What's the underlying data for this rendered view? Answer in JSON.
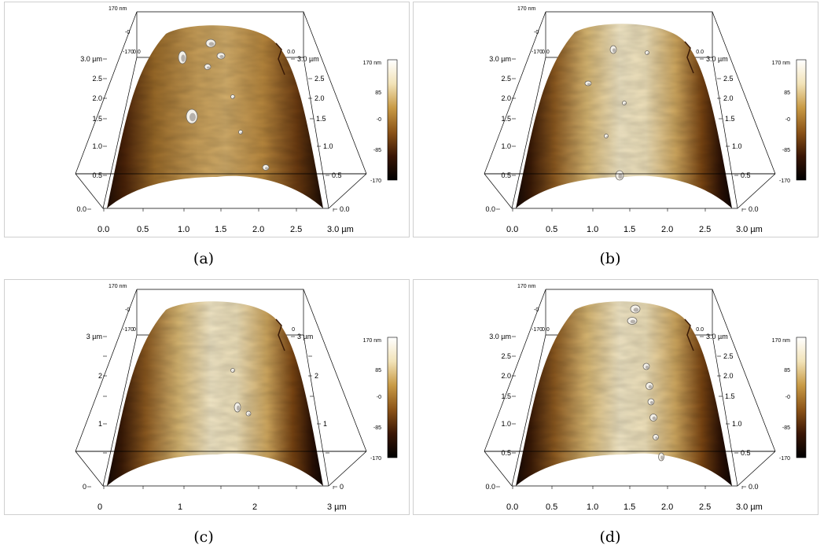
{
  "panels": [
    {
      "caption": "(a)",
      "z_top_label": "170 nm",
      "z_zero_label": "-0",
      "z_min_label": "-170",
      "left_corner_label": "0.0",
      "right_corner_label": "0.0",
      "y_axis_left": [
        "3.0 µm",
        "2.5",
        "2.0",
        "1.5",
        "1.0",
        "0.5",
        "0.0"
      ],
      "y_axis_right": [
        "3.0 µm",
        "2.5",
        "2.0",
        "1.5",
        "1.0",
        "0.5",
        "0.0"
      ],
      "y_corner_left": "0.0",
      "x_axis": [
        "0.0",
        "0.5",
        "1.0",
        "1.5",
        "2.0",
        "2.5",
        "3.0 µm"
      ],
      "colorbar": [
        "170 nm",
        "85",
        "-0",
        "-85",
        "-170"
      ]
    },
    {
      "caption": "(b)",
      "z_top_label": "170 nm",
      "z_zero_label": "-0",
      "z_min_label": "-170",
      "left_corner_label": "0.0",
      "right_corner_label": "0.0",
      "y_axis_left": [
        "3.0 µm",
        "2.5",
        "2.0",
        "1.5",
        "1.0",
        "0.5",
        "0.0"
      ],
      "y_axis_right": [
        "3.0 µm",
        "2.5",
        "2.0",
        "1.5",
        "1.0",
        "0.5",
        "0.0"
      ],
      "y_corner_left": "0.0",
      "x_axis": [
        "0.0",
        "0.5",
        "1.0",
        "1.5",
        "2.0",
        "2.5",
        "3.0 µm"
      ],
      "colorbar": [
        "170 nm",
        "85",
        "-0",
        "-85",
        "-170"
      ]
    },
    {
      "caption": "(c)",
      "z_top_label": "170 nm",
      "z_zero_label": "-0",
      "z_min_label": "-170",
      "left_corner_label": "0",
      "right_corner_label": "0",
      "y_axis_left": [
        "3 µm",
        "",
        "2",
        "",
        "1",
        "",
        "0"
      ],
      "y_axis_right": [
        "3 µm",
        "",
        "2",
        "",
        "1",
        "",
        "0"
      ],
      "y_corner_left": "0",
      "x_axis": [
        "0",
        "",
        "1",
        "",
        "2",
        "",
        "3 µm"
      ],
      "colorbar": [
        "170 nm",
        "85",
        "-0",
        "-85",
        "-170"
      ]
    },
    {
      "caption": "(d)",
      "z_top_label": "170 nm",
      "z_zero_label": "-0",
      "z_min_label": "-170",
      "left_corner_label": "0.0",
      "right_corner_label": "0.0",
      "y_axis_left": [
        "3.0 µm",
        "2.5",
        "2.0",
        "1.5",
        "1.0",
        "0.5",
        "0.0"
      ],
      "y_axis_right": [
        "3.0 µm",
        "2.5",
        "2.0",
        "1.5",
        "1.0",
        "0.5",
        "0.0"
      ],
      "y_corner_left": "0.0",
      "x_axis": [
        "0.0",
        "0.5",
        "1.0",
        "1.5",
        "2.0",
        "2.5",
        "3.0 µm"
      ],
      "colorbar": [
        "170 nm",
        "85",
        "-0",
        "-85",
        "-170"
      ]
    }
  ],
  "colors": {
    "colorbar_stops": [
      "#ffffff",
      "#f2e3b8",
      "#c89a45",
      "#8c5418",
      "#3a1605",
      "#000000"
    ],
    "surface_dark": "#3a1a06",
    "surface_mid": "#b0802f",
    "surface_light": "#ebdcae",
    "frame_line": "#000000"
  }
}
